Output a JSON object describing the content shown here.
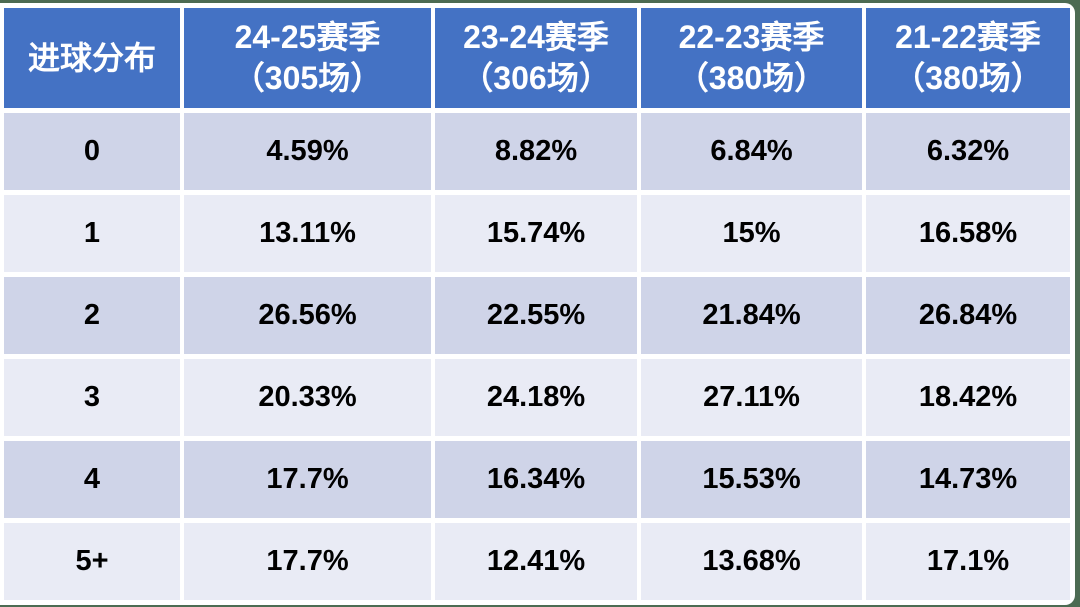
{
  "frame": {
    "surround_color": "#4C6B52",
    "card_color": "#FFFFFF"
  },
  "table": {
    "title": "进球分布",
    "header_bg_color": "#4472C4",
    "header_text_color": "#FFFFFF",
    "row_dark_color": "#CFD4E8",
    "row_light_color": "#E9EBF5",
    "columns": [
      {
        "label": "进球分布",
        "sub": ""
      },
      {
        "label": "24-25赛季",
        "sub": "（305场）"
      },
      {
        "label": "23-24赛季",
        "sub": "（306场）"
      },
      {
        "label": "22-23赛季",
        "sub": "（380场）"
      },
      {
        "label": "21-22赛季",
        "sub": "（380场）"
      }
    ],
    "rows": [
      {
        "goals": "0",
        "values": [
          "4.59%",
          "8.82%",
          "6.84%",
          "6.32%"
        ]
      },
      {
        "goals": "1",
        "values": [
          "13.11%",
          "15.74%",
          "15%",
          "16.58%"
        ]
      },
      {
        "goals": "2",
        "values": [
          "26.56%",
          "22.55%",
          "21.84%",
          "26.84%"
        ]
      },
      {
        "goals": "3",
        "values": [
          "20.33%",
          "24.18%",
          "27.11%",
          "18.42%"
        ]
      },
      {
        "goals": "4",
        "values": [
          "17.7%",
          "16.34%",
          "15.53%",
          "14.73%"
        ]
      },
      {
        "goals": "5+",
        "values": [
          "17.7%",
          "12.41%",
          "13.68%",
          "17.1%"
        ]
      }
    ]
  },
  "chart_data": {
    "type": "table",
    "title": "进球分布",
    "row_label": "进球分布",
    "categories": [
      "0",
      "1",
      "2",
      "3",
      "4",
      "5+"
    ],
    "series": [
      {
        "name": "24-25赛季（305场）",
        "matches": 305,
        "values": [
          4.59,
          13.11,
          26.56,
          20.33,
          17.7,
          17.7
        ]
      },
      {
        "name": "23-24赛季（306场）",
        "matches": 306,
        "values": [
          8.82,
          15.74,
          22.55,
          24.18,
          16.34,
          12.41
        ]
      },
      {
        "name": "22-23赛季（380场）",
        "matches": 380,
        "values": [
          6.84,
          15.0,
          21.84,
          27.11,
          15.53,
          13.68
        ]
      },
      {
        "name": "21-22赛季（380场）",
        "matches": 380,
        "values": [
          6.32,
          16.58,
          26.84,
          18.42,
          14.73,
          17.1
        ]
      }
    ],
    "unit": "%"
  }
}
